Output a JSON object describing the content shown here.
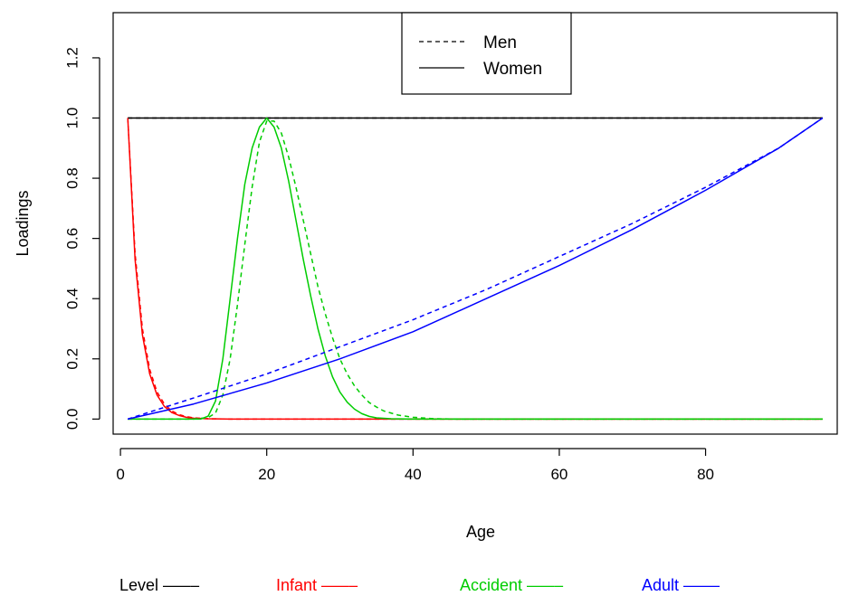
{
  "chart_data": {
    "type": "line",
    "xlabel": "Age",
    "ylabel": "Loadings",
    "xlim": [
      -1,
      98
    ],
    "ylim": [
      -0.05,
      1.35
    ],
    "x_ticks": [
      "0",
      "20",
      "40",
      "60",
      "80"
    ],
    "y_ticks": [
      "0.0",
      "0.2",
      "0.4",
      "0.6",
      "0.8",
      "1.0",
      "1.2"
    ],
    "legend": {
      "position": "top-center",
      "entries": [
        {
          "label": "Men",
          "linetype": "dashed"
        },
        {
          "label": "Women",
          "linetype": "solid"
        }
      ]
    },
    "color_key": [
      {
        "label": "Level ––––",
        "color": "#000000"
      },
      {
        "label": "Infant ––––",
        "color": "#ff0000"
      },
      {
        "label": "Accident ––––",
        "color": "#00cd00"
      },
      {
        "label": "Adult ––––",
        "color": "#0000ff"
      }
    ],
    "series": [
      {
        "group": "Level",
        "sex": "Men",
        "color": "#000000",
        "dash": true,
        "points": [
          [
            1,
            1
          ],
          [
            96,
            1
          ]
        ]
      },
      {
        "group": "Level",
        "sex": "Women",
        "color": "#000000",
        "dash": false,
        "points": [
          [
            1,
            1
          ],
          [
            96,
            1
          ]
        ]
      },
      {
        "group": "Infant",
        "sex": "Men",
        "color": "#ff0000",
        "dash": true,
        "points": [
          [
            1,
            1.0
          ],
          [
            2,
            0.55
          ],
          [
            3,
            0.3
          ],
          [
            4,
            0.165
          ],
          [
            5,
            0.09
          ],
          [
            6,
            0.05
          ],
          [
            7,
            0.027
          ],
          [
            8,
            0.015
          ],
          [
            9,
            0.008
          ],
          [
            10,
            0.004
          ],
          [
            12,
            0.001
          ],
          [
            15,
            0.0
          ],
          [
            20,
            0.0
          ],
          [
            40,
            0.0
          ],
          [
            96,
            0.0
          ]
        ]
      },
      {
        "group": "Infant",
        "sex": "Women",
        "color": "#ff0000",
        "dash": false,
        "points": [
          [
            1,
            1.0
          ],
          [
            2,
            0.53
          ],
          [
            3,
            0.28
          ],
          [
            4,
            0.15
          ],
          [
            5,
            0.08
          ],
          [
            6,
            0.042
          ],
          [
            7,
            0.022
          ],
          [
            8,
            0.012
          ],
          [
            9,
            0.006
          ],
          [
            10,
            0.003
          ],
          [
            12,
            0.001
          ],
          [
            15,
            0.0
          ],
          [
            20,
            0.0
          ],
          [
            40,
            0.0
          ],
          [
            96,
            0.0
          ]
        ]
      },
      {
        "group": "Accident",
        "sex": "Men",
        "color": "#00cd00",
        "dash": true,
        "points": [
          [
            1,
            0
          ],
          [
            10,
            0
          ],
          [
            12,
            0.005
          ],
          [
            13,
            0.02
          ],
          [
            14,
            0.08
          ],
          [
            15,
            0.2
          ],
          [
            16,
            0.38
          ],
          [
            17,
            0.58
          ],
          [
            18,
            0.77
          ],
          [
            19,
            0.92
          ],
          [
            20,
            0.99
          ],
          [
            21,
            0.99
          ],
          [
            22,
            0.95
          ],
          [
            23,
            0.87
          ],
          [
            24,
            0.77
          ],
          [
            25,
            0.66
          ],
          [
            26,
            0.55
          ],
          [
            27,
            0.44
          ],
          [
            28,
            0.35
          ],
          [
            29,
            0.27
          ],
          [
            30,
            0.2
          ],
          [
            31,
            0.15
          ],
          [
            32,
            0.11
          ],
          [
            33,
            0.08
          ],
          [
            34,
            0.055
          ],
          [
            35,
            0.04
          ],
          [
            36,
            0.027
          ],
          [
            38,
            0.013
          ],
          [
            40,
            0.006
          ],
          [
            43,
            0.001
          ],
          [
            46,
            0.0
          ],
          [
            96,
            0.0
          ]
        ]
      },
      {
        "group": "Accident",
        "sex": "Women",
        "color": "#00cd00",
        "dash": false,
        "points": [
          [
            1,
            0
          ],
          [
            11,
            0
          ],
          [
            12,
            0.01
          ],
          [
            13,
            0.06
          ],
          [
            14,
            0.2
          ],
          [
            15,
            0.4
          ],
          [
            16,
            0.6
          ],
          [
            17,
            0.78
          ],
          [
            18,
            0.9
          ],
          [
            19,
            0.97
          ],
          [
            20,
            1.0
          ],
          [
            21,
            0.97
          ],
          [
            22,
            0.9
          ],
          [
            23,
            0.79
          ],
          [
            24,
            0.66
          ],
          [
            25,
            0.53
          ],
          [
            26,
            0.41
          ],
          [
            27,
            0.3
          ],
          [
            28,
            0.21
          ],
          [
            29,
            0.14
          ],
          [
            30,
            0.09
          ],
          [
            31,
            0.056
          ],
          [
            32,
            0.033
          ],
          [
            33,
            0.018
          ],
          [
            34,
            0.009
          ],
          [
            35,
            0.004
          ],
          [
            37,
            0.001
          ],
          [
            40,
            0.0
          ],
          [
            96,
            0.0
          ]
        ]
      },
      {
        "group": "Adult",
        "sex": "Men",
        "color": "#0000ff",
        "dash": true,
        "points": [
          [
            1,
            0
          ],
          [
            10,
            0.07
          ],
          [
            20,
            0.15
          ],
          [
            30,
            0.24
          ],
          [
            40,
            0.33
          ],
          [
            50,
            0.43
          ],
          [
            60,
            0.54
          ],
          [
            70,
            0.65
          ],
          [
            80,
            0.77
          ],
          [
            90,
            0.9
          ],
          [
            96,
            1.0
          ]
        ]
      },
      {
        "group": "Adult",
        "sex": "Women",
        "color": "#0000ff",
        "dash": false,
        "points": [
          [
            1,
            0
          ],
          [
            10,
            0.05
          ],
          [
            20,
            0.12
          ],
          [
            30,
            0.2
          ],
          [
            40,
            0.29
          ],
          [
            50,
            0.4
          ],
          [
            60,
            0.51
          ],
          [
            70,
            0.63
          ],
          [
            80,
            0.76
          ],
          [
            90,
            0.9
          ],
          [
            96,
            1.0
          ]
        ]
      }
    ]
  }
}
